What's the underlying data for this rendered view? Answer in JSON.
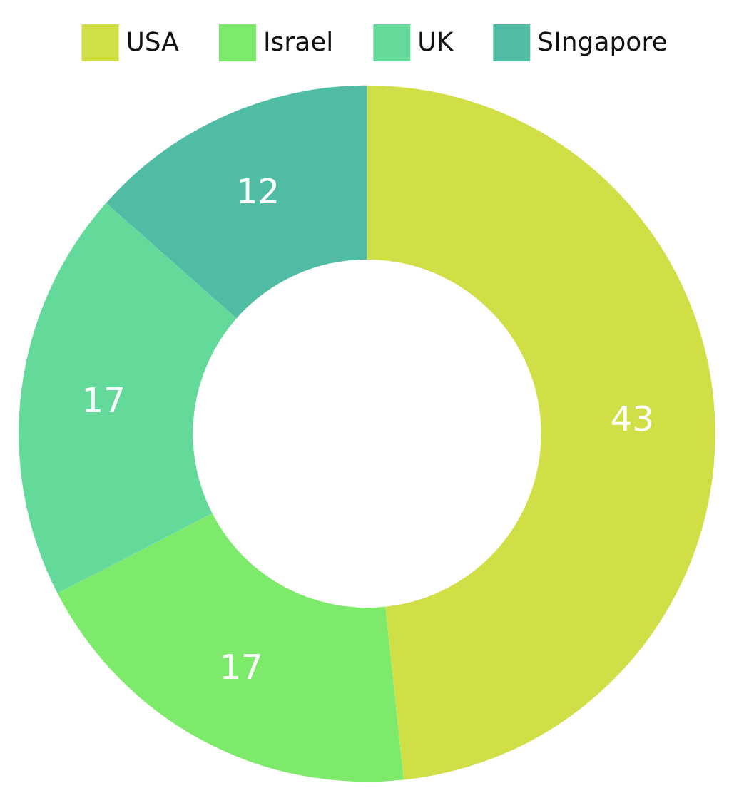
{
  "chart_data": {
    "type": "donut",
    "categories": [
      "USA",
      "Israel",
      "UK",
      "SIngapore"
    ],
    "values": [
      43,
      17,
      17,
      12
    ],
    "colors": [
      "#d0df45",
      "#7eea6b",
      "#63d99a",
      "#50bca4"
    ],
    "data_labels": true,
    "legend": "top"
  }
}
